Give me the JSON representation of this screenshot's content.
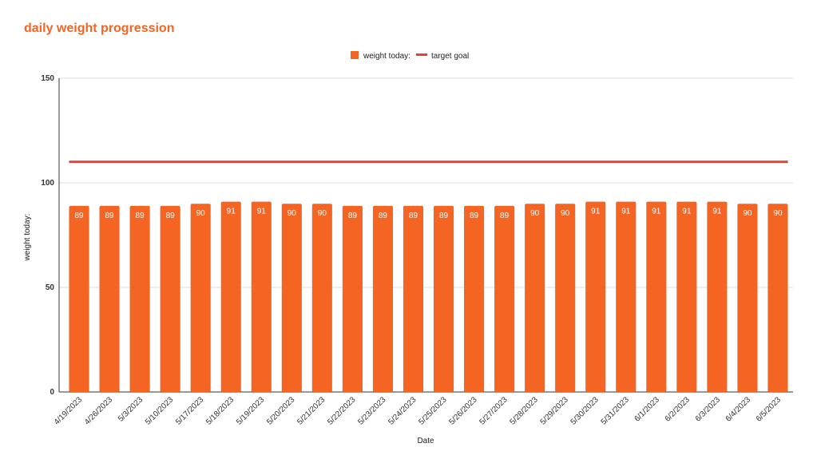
{
  "chart_data": {
    "type": "bar",
    "title": "daily weight progression",
    "xlabel": "Date",
    "ylabel": "weight today:",
    "ylim": [
      0,
      150
    ],
    "yticks": [
      0,
      50,
      100,
      150
    ],
    "grid": true,
    "legend_position": "top",
    "categories": [
      "4/19/2023",
      "4/26/2023",
      "5/3/2023",
      "5/10/2023",
      "5/17/2023",
      "5/18/2023",
      "5/19/2023",
      "5/20/2023",
      "5/21/2023",
      "5/22/2023",
      "5/23/2023",
      "5/24/2023",
      "5/25/2023",
      "5/26/2023",
      "5/27/2023",
      "5/28/2023",
      "5/29/2023",
      "5/30/2023",
      "5/31/2023",
      "6/1/2023",
      "6/2/2023",
      "6/3/2023",
      "6/4/2023",
      "6/5/2023"
    ],
    "series": [
      {
        "name": "weight today:",
        "type": "bar",
        "color": "#f46524",
        "values": [
          89,
          89,
          89,
          89,
          90,
          91,
          91,
          90,
          90,
          89,
          89,
          89,
          89,
          89,
          89,
          90,
          90,
          91,
          91,
          91,
          91,
          91,
          90,
          90
        ]
      },
      {
        "name": "target goal",
        "type": "line",
        "color": "#db4437",
        "values": [
          110,
          110,
          110,
          110,
          110,
          110,
          110,
          110,
          110,
          110,
          110,
          110,
          110,
          110,
          110,
          110,
          110,
          110,
          110,
          110,
          110,
          110,
          110,
          110
        ]
      }
    ]
  }
}
